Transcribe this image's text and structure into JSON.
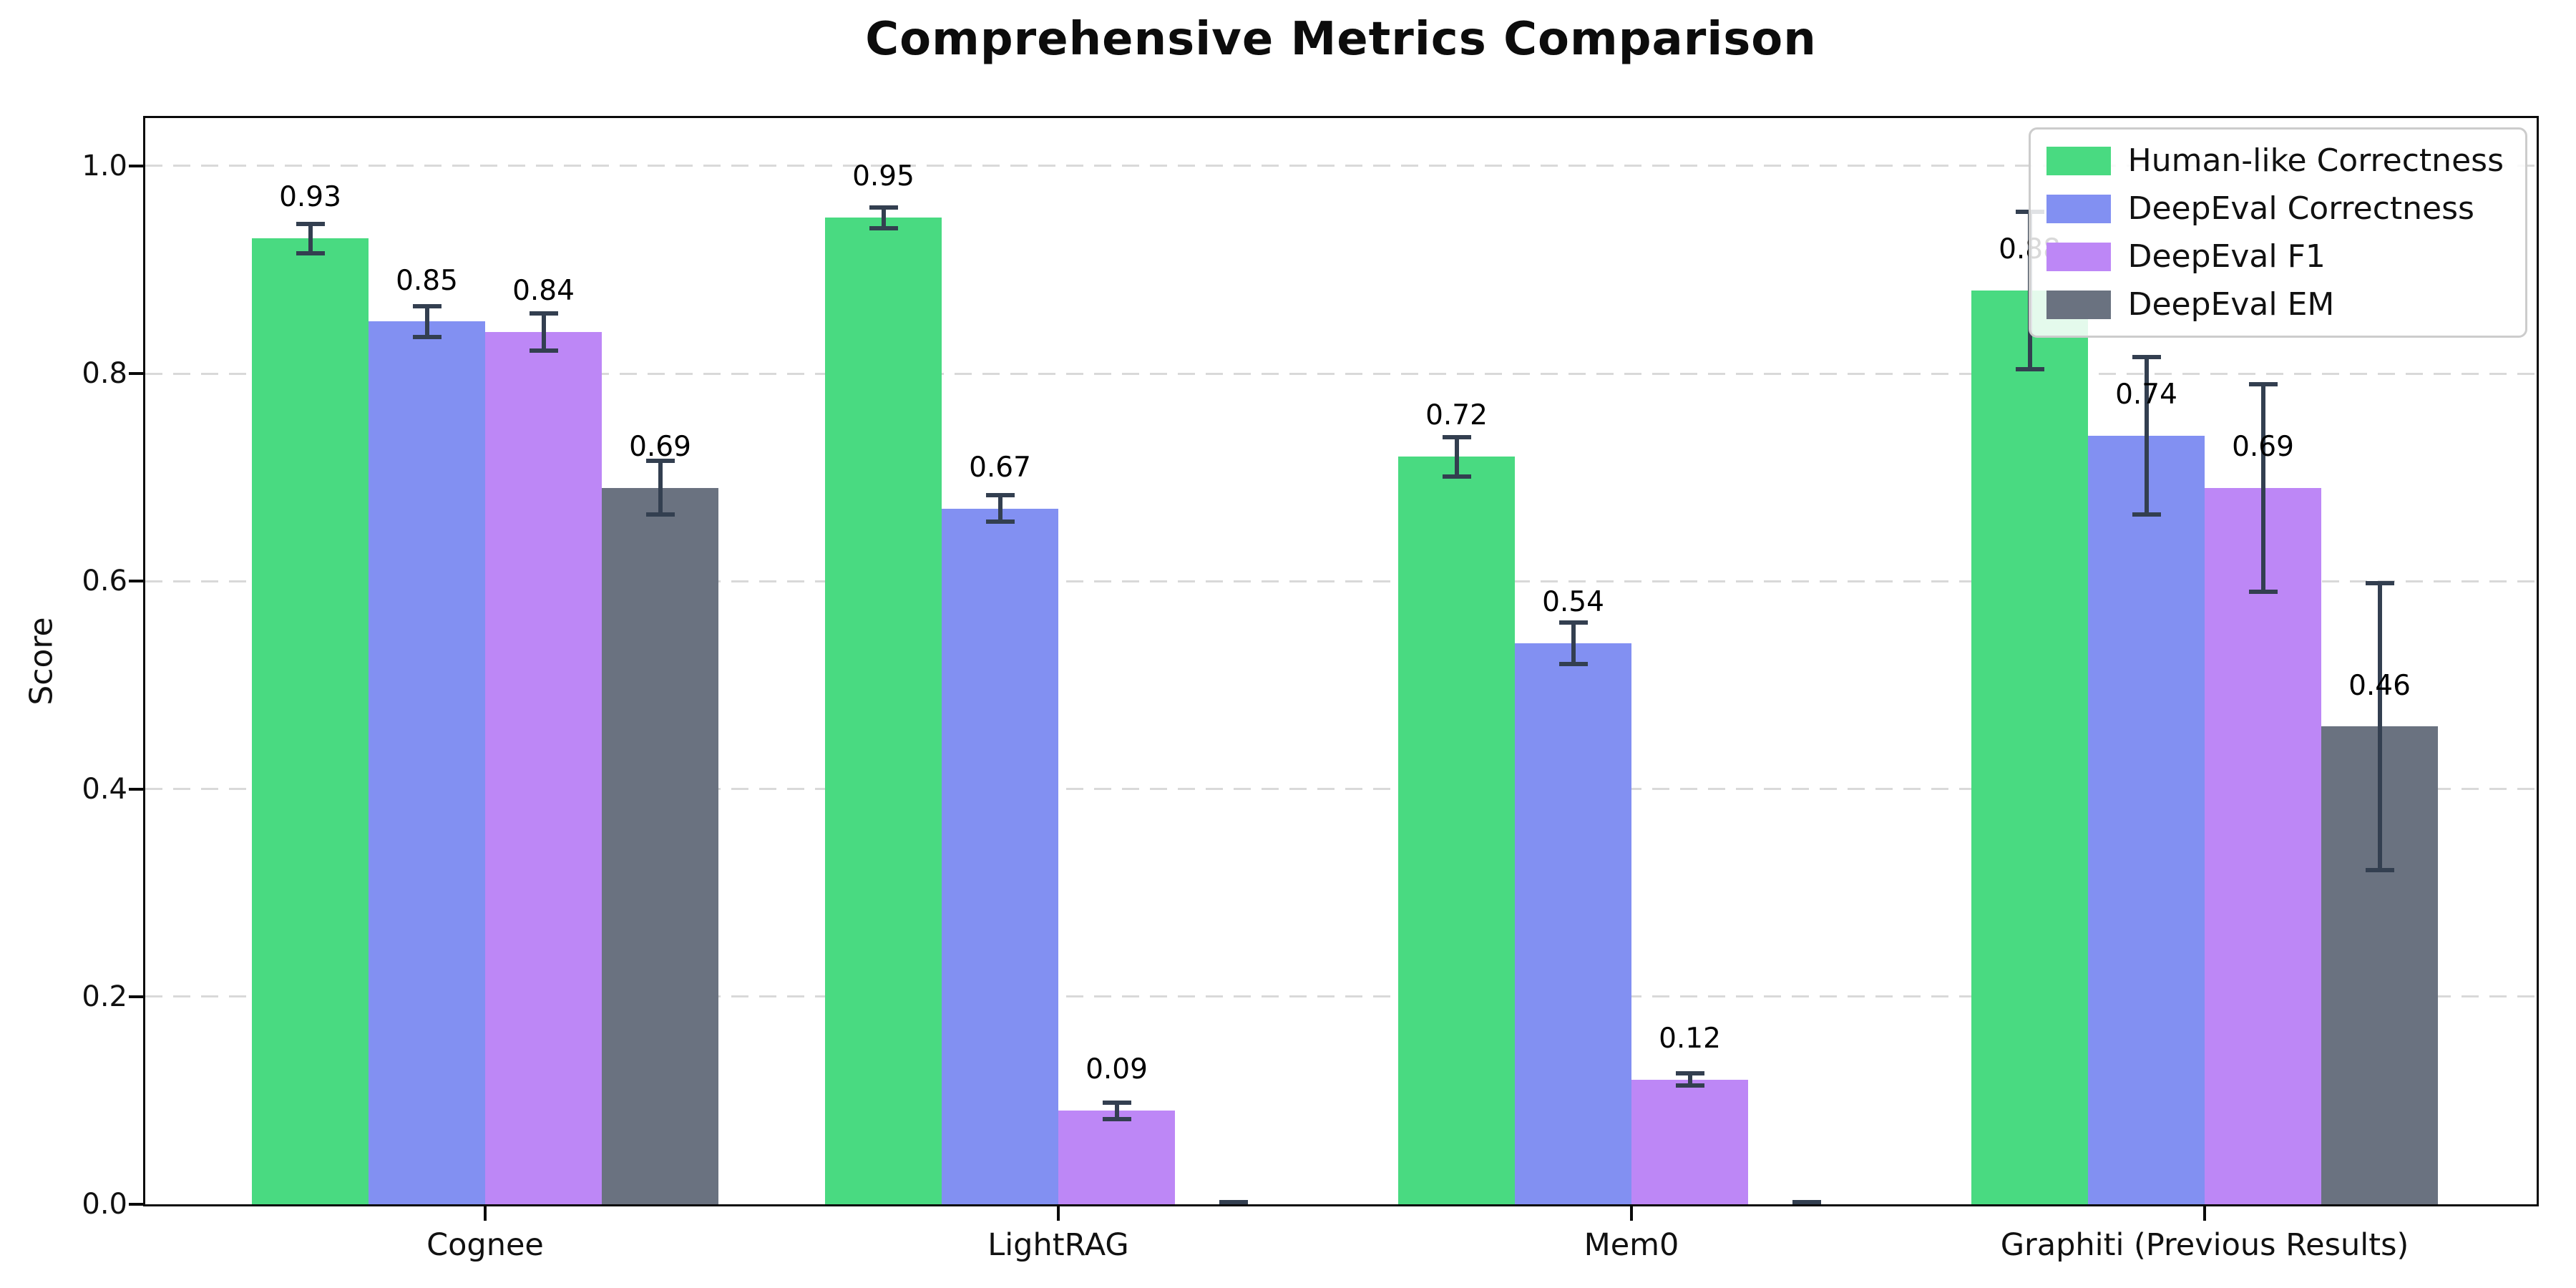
{
  "chart_data": {
    "type": "bar",
    "title": "Comprehensive Metrics Comparison",
    "ylabel": "Score",
    "xlabel": "",
    "categories": [
      "Cognee",
      "LightRAG",
      "Mem0",
      "Graphiti (Previous Results)"
    ],
    "series": [
      {
        "name": "Human-like Correctness",
        "color": "#49da81",
        "values": [
          0.93,
          0.95,
          0.72,
          0.88
        ],
        "errors": [
          0.016,
          0.012,
          0.021,
          0.078
        ],
        "value_labels": [
          "0.93",
          "0.95",
          "0.72",
          "0.88"
        ]
      },
      {
        "name": "DeepEval Correctness",
        "color": "#8290f2",
        "values": [
          0.85,
          0.67,
          0.54,
          0.74
        ],
        "errors": [
          0.017,
          0.015,
          0.022,
          0.078
        ],
        "value_labels": [
          "0.85",
          "0.67",
          "0.54",
          "0.74"
        ]
      },
      {
        "name": "DeepEval F1",
        "color": "#bd87f6",
        "values": [
          0.84,
          0.09,
          0.12,
          0.69
        ],
        "errors": [
          0.02,
          0.01,
          0.008,
          0.102
        ],
        "value_labels": [
          "0.84",
          "0.09",
          "0.12",
          "0.69"
        ]
      },
      {
        "name": "DeepEval EM",
        "color": "#6a7280",
        "values": [
          0.69,
          0.0,
          0.0,
          0.46
        ],
        "errors": [
          0.028,
          0.004,
          0.004,
          0.14
        ],
        "value_labels": [
          "0.69",
          "",
          "",
          "0.46"
        ]
      }
    ],
    "yticks": {
      "values": [
        0.0,
        0.2,
        0.4,
        0.6,
        0.8,
        1.0
      ],
      "labels": [
        "0.0",
        "0.2",
        "0.4",
        "0.6",
        "0.8",
        "1.0"
      ]
    },
    "ylim": [
      0,
      1.046
    ],
    "grid": {
      "axis": "y",
      "style": "dashed",
      "color": "#d9d9d9"
    },
    "legend_position": "upper-right",
    "error_bar_color": "#333f50"
  }
}
